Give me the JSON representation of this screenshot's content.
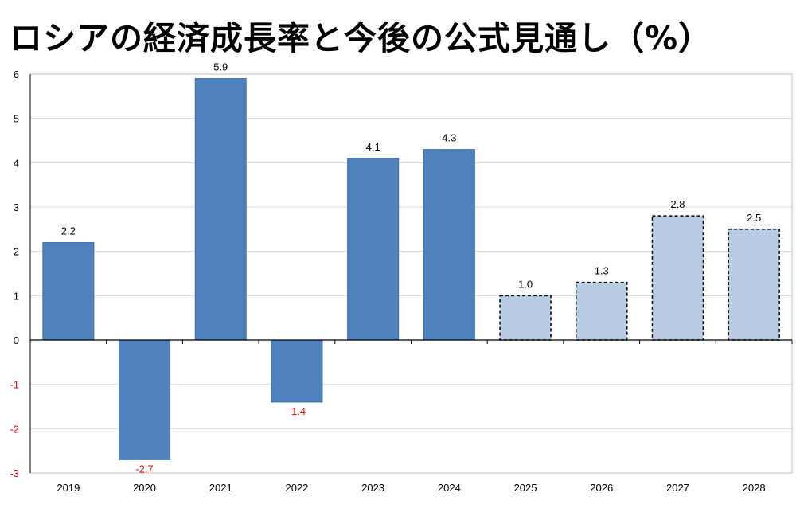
{
  "title": "ロシアの経済成長率と今後の公式見通し（%）",
  "colors": {
    "actual": "#4f81bd",
    "forecast": "#b9cce4",
    "negative_label": "#ff0000",
    "text": "#000000",
    "grid": "#d9d9d9"
  },
  "chart_data": {
    "type": "bar",
    "title": "ロシアの経済成長率と今後の公式見通し（%）",
    "xlabel": "",
    "ylabel": "",
    "categories": [
      "2019",
      "2020",
      "2021",
      "2022",
      "2023",
      "2024",
      "2025",
      "2026",
      "2027",
      "2028"
    ],
    "values": [
      2.2,
      -2.7,
      5.9,
      -1.4,
      4.1,
      4.3,
      1.0,
      1.3,
      2.8,
      2.5
    ],
    "data_labels": [
      "2.2",
      "-2.7",
      "5.9",
      "-1.4",
      "4.1",
      "4.3",
      "1.0",
      "1.3",
      "2.8",
      "2.5"
    ],
    "forecast": [
      false,
      false,
      false,
      false,
      false,
      false,
      true,
      true,
      true,
      true
    ],
    "ylim": [
      -3,
      6
    ],
    "yticks": [
      "6",
      "5",
      "4",
      "3",
      "2",
      "1",
      "0",
      "-1",
      "-2",
      "-3"
    ],
    "grid": true,
    "legend": "none"
  }
}
